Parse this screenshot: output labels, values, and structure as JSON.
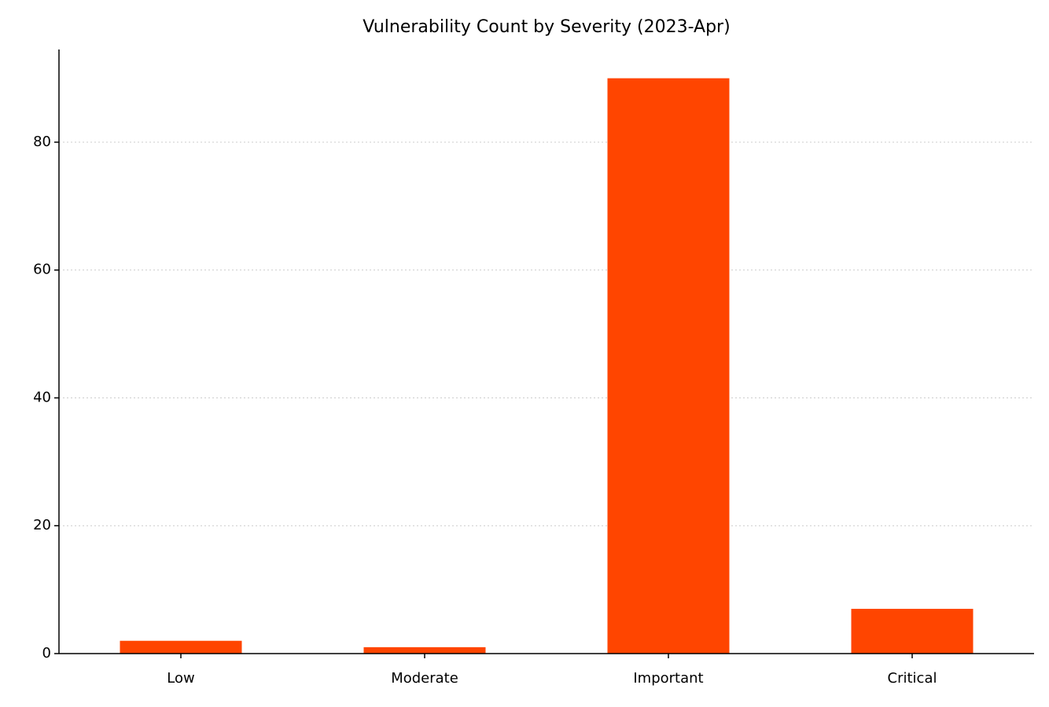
{
  "chart_data": {
    "type": "bar",
    "title": "Vulnerability Count by Severity (2023-Apr)",
    "categories": [
      "Low",
      "Moderate",
      "Important",
      "Critical"
    ],
    "values": [
      2,
      1,
      90,
      7
    ],
    "color": "#ff4500",
    "ylim": [
      0,
      94.5
    ],
    "yticks": [
      0,
      20,
      40,
      60,
      80
    ],
    "grid": true
  }
}
